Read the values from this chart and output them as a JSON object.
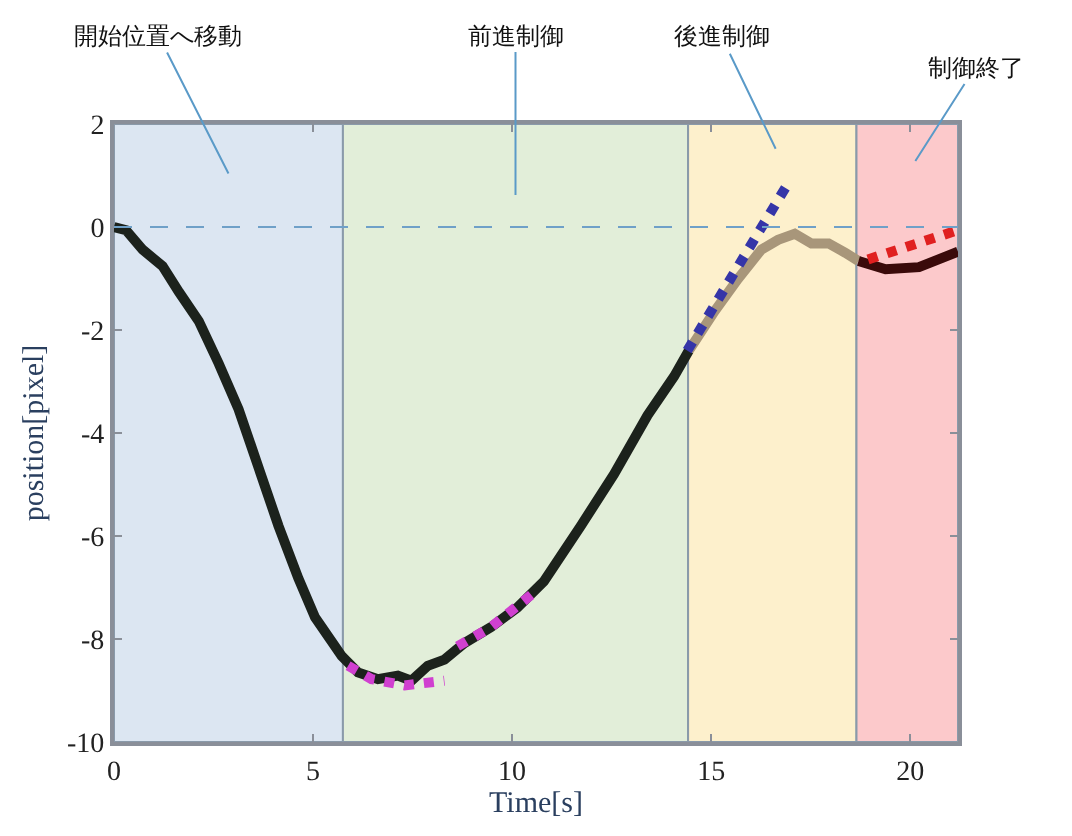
{
  "chart_data": {
    "type": "line",
    "xlabel": "Time[s]",
    "ylabel": "position[pixel]",
    "xlim": [
      0,
      21.2
    ],
    "ylim": [
      -10,
      2
    ],
    "xticks": [
      0,
      5,
      10,
      15,
      20
    ],
    "yticks": [
      -10,
      -8,
      -6,
      -4,
      -2,
      0,
      2
    ],
    "grid": false,
    "marker": "none",
    "series": [
      {
        "color": "#1c221c",
        "line_style": "solid",
        "x": [
          0,
          0.3,
          0.72,
          1.22,
          1.63,
          2.13,
          2.63,
          3.13,
          3.63,
          4.13,
          4.63,
          5.05,
          5.72,
          6.13,
          6.63,
          7.13,
          7.47,
          7.88,
          8.3,
          8.8,
          9.47,
          10.13,
          10.8,
          11.72,
          12.56,
          13.4,
          14.07,
          14.44
        ],
        "values": [
          0,
          -0.06,
          -0.44,
          -0.76,
          -1.26,
          -1.83,
          -2.65,
          -3.54,
          -4.67,
          -5.8,
          -6.82,
          -7.58,
          -8.33,
          -8.65,
          -8.78,
          -8.71,
          -8.81,
          -8.52,
          -8.4,
          -8.08,
          -7.77,
          -7.39,
          -6.88,
          -5.81,
          -4.8,
          -3.66,
          -2.9,
          -2.4
        ]
      },
      {
        "color": "#a8967a",
        "line_style": "solid",
        "x": [
          14.44,
          15.08,
          15.67,
          16.26,
          16.68,
          17.1,
          17.52,
          17.95,
          18.37,
          18.7
        ],
        "values": [
          -2.4,
          -1.64,
          -1.01,
          -0.44,
          -0.25,
          -0.13,
          -0.32,
          -0.32,
          -0.5,
          -0.66
        ]
      },
      {
        "color": "#3a0a0a",
        "line_style": "solid",
        "x": [
          18.7,
          19.38,
          20.22,
          21.2
        ],
        "values": [
          -0.66,
          -0.82,
          -0.78,
          -0.48
        ]
      },
      {
        "color": "#d040d0",
        "line_style": "dotted",
        "x": [
          5.88,
          6.47,
          7.3,
          8.3
        ],
        "values": [
          -8.52,
          -8.78,
          -8.9,
          -8.81
        ]
      },
      {
        "color": "#d040d0",
        "line_style": "dotted",
        "x": [
          8.63,
          9.47,
          10.63
        ],
        "values": [
          -8.14,
          -7.77,
          -7.05
        ]
      },
      {
        "color": "#3535a8",
        "line_style": "dotted",
        "x": [
          14.4,
          16.95
        ],
        "values": [
          -2.4,
          0.87
        ]
      },
      {
        "color": "#e02020",
        "line_style": "dotted",
        "x": [
          18.94,
          21.2
        ],
        "values": [
          -0.63,
          -0.06
        ]
      }
    ],
    "bands": [
      {
        "axis": "x",
        "from": 0,
        "to": 5.75,
        "color": "#dce6f2",
        "label": "開始位置へ移動"
      },
      {
        "axis": "x",
        "from": 5.75,
        "to": 14.42,
        "color": "#e2eed9",
        "label": "前進制御"
      },
      {
        "axis": "x",
        "from": 14.42,
        "to": 18.65,
        "color": "#fdf0cc",
        "label": "後進制御"
      },
      {
        "axis": "x",
        "from": 18.65,
        "to": 21.2,
        "color": "#fcc9cb",
        "label": "制御終了"
      }
    ],
    "ref_lines": [
      {
        "axis": "y",
        "value": 0,
        "color": "#6fa0c8",
        "line_style": "dashed"
      }
    ]
  }
}
